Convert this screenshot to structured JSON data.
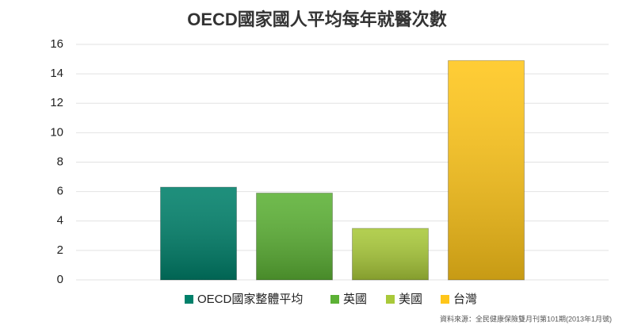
{
  "chart_data": {
    "type": "bar",
    "title": "OECD國家國人平均每年就醫次數",
    "categories": [
      null
    ],
    "series": [
      {
        "name": "OECD國家整體平均",
        "color": "#00806a",
        "values": [
          6.3
        ]
      },
      {
        "name": "英國",
        "color": "#5cb135",
        "values": [
          5.9
        ]
      },
      {
        "name": "美國",
        "color": "#a9c93a",
        "values": [
          3.5
        ]
      },
      {
        "name": "台灣",
        "color": "#ffc61a",
        "values": [
          14.9
        ]
      }
    ],
    "ylim": [
      0,
      16
    ],
    "yticks": [
      0,
      2,
      4,
      6,
      8,
      10,
      12,
      14,
      16
    ],
    "grid": true,
    "legend": "bottom",
    "source": "資料來源：全民健康保險雙月刊第101期(2013年1月號)"
  }
}
